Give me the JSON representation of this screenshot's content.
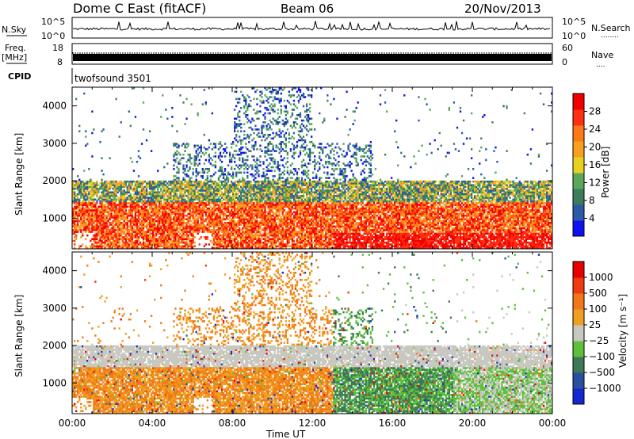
{
  "header": {
    "station": "Dome C East (fitACF)",
    "beam": "Beam 06",
    "date": "20/Nov/2013"
  },
  "top_panels": {
    "nsky_label": "N.Sky",
    "nsky_max": "10^5",
    "nsky_min": "10^0",
    "nsearch_label": "N.Search",
    "nsearch_dots": "........",
    "freq_label": "Freq.",
    "freq_unit": "[MHz]",
    "freq_max": "18",
    "freq_min": "8",
    "nave_label": "Nave",
    "nave_dots": "....",
    "nave_max": "60",
    "nave_min": "0",
    "cpid_label": "CPID",
    "cpid_value": "twofsound 3501"
  },
  "chart_data": [
    {
      "type": "heatmap",
      "panel": "power",
      "ylabel": "Slant Range [km]",
      "xlabel": "",
      "x_ticks": [
        "00:00",
        "04:00",
        "08:00",
        "12:00",
        "16:00",
        "20:00",
        "00:00"
      ],
      "x_range_hours": [
        0,
        24
      ],
      "y_ticks": [
        1000,
        2000,
        3000,
        4000
      ],
      "ylim": [
        180,
        4500
      ],
      "colorbar": {
        "label": "Power [dB]",
        "ticks": [
          "28",
          "24",
          "20",
          "16",
          "12",
          "8",
          "4"
        ],
        "colors": [
          "#1010f0",
          "#2a5aa8",
          "#3e7d5c",
          "#5aa85a",
          "#e8d020",
          "#f7a020",
          "#ff7818",
          "#ff3010",
          "#f00000"
        ]
      }
    },
    {
      "type": "heatmap",
      "panel": "velocity",
      "ylabel": "Slant Range [km]",
      "xlabel": "Time UT",
      "x_ticks": [
        "00:00",
        "04:00",
        "08:00",
        "12:00",
        "16:00",
        "20:00",
        "00:00"
      ],
      "x_range_hours": [
        0,
        24
      ],
      "y_ticks": [
        1000,
        2000,
        3000,
        4000
      ],
      "ylim": [
        180,
        4500
      ],
      "colorbar": {
        "label": "Velocity [m s⁻¹]",
        "ticks": [
          "1000",
          "500",
          "100",
          "25",
          "−25",
          "−100",
          "−500",
          "−1000"
        ],
        "colors": [
          "#1428d2",
          "#2a4fa0",
          "#3c7a55",
          "#5cc03c",
          "#c8c8c0",
          "#f0a020",
          "#f07818",
          "#f03a10",
          "#e80000"
        ]
      }
    }
  ]
}
